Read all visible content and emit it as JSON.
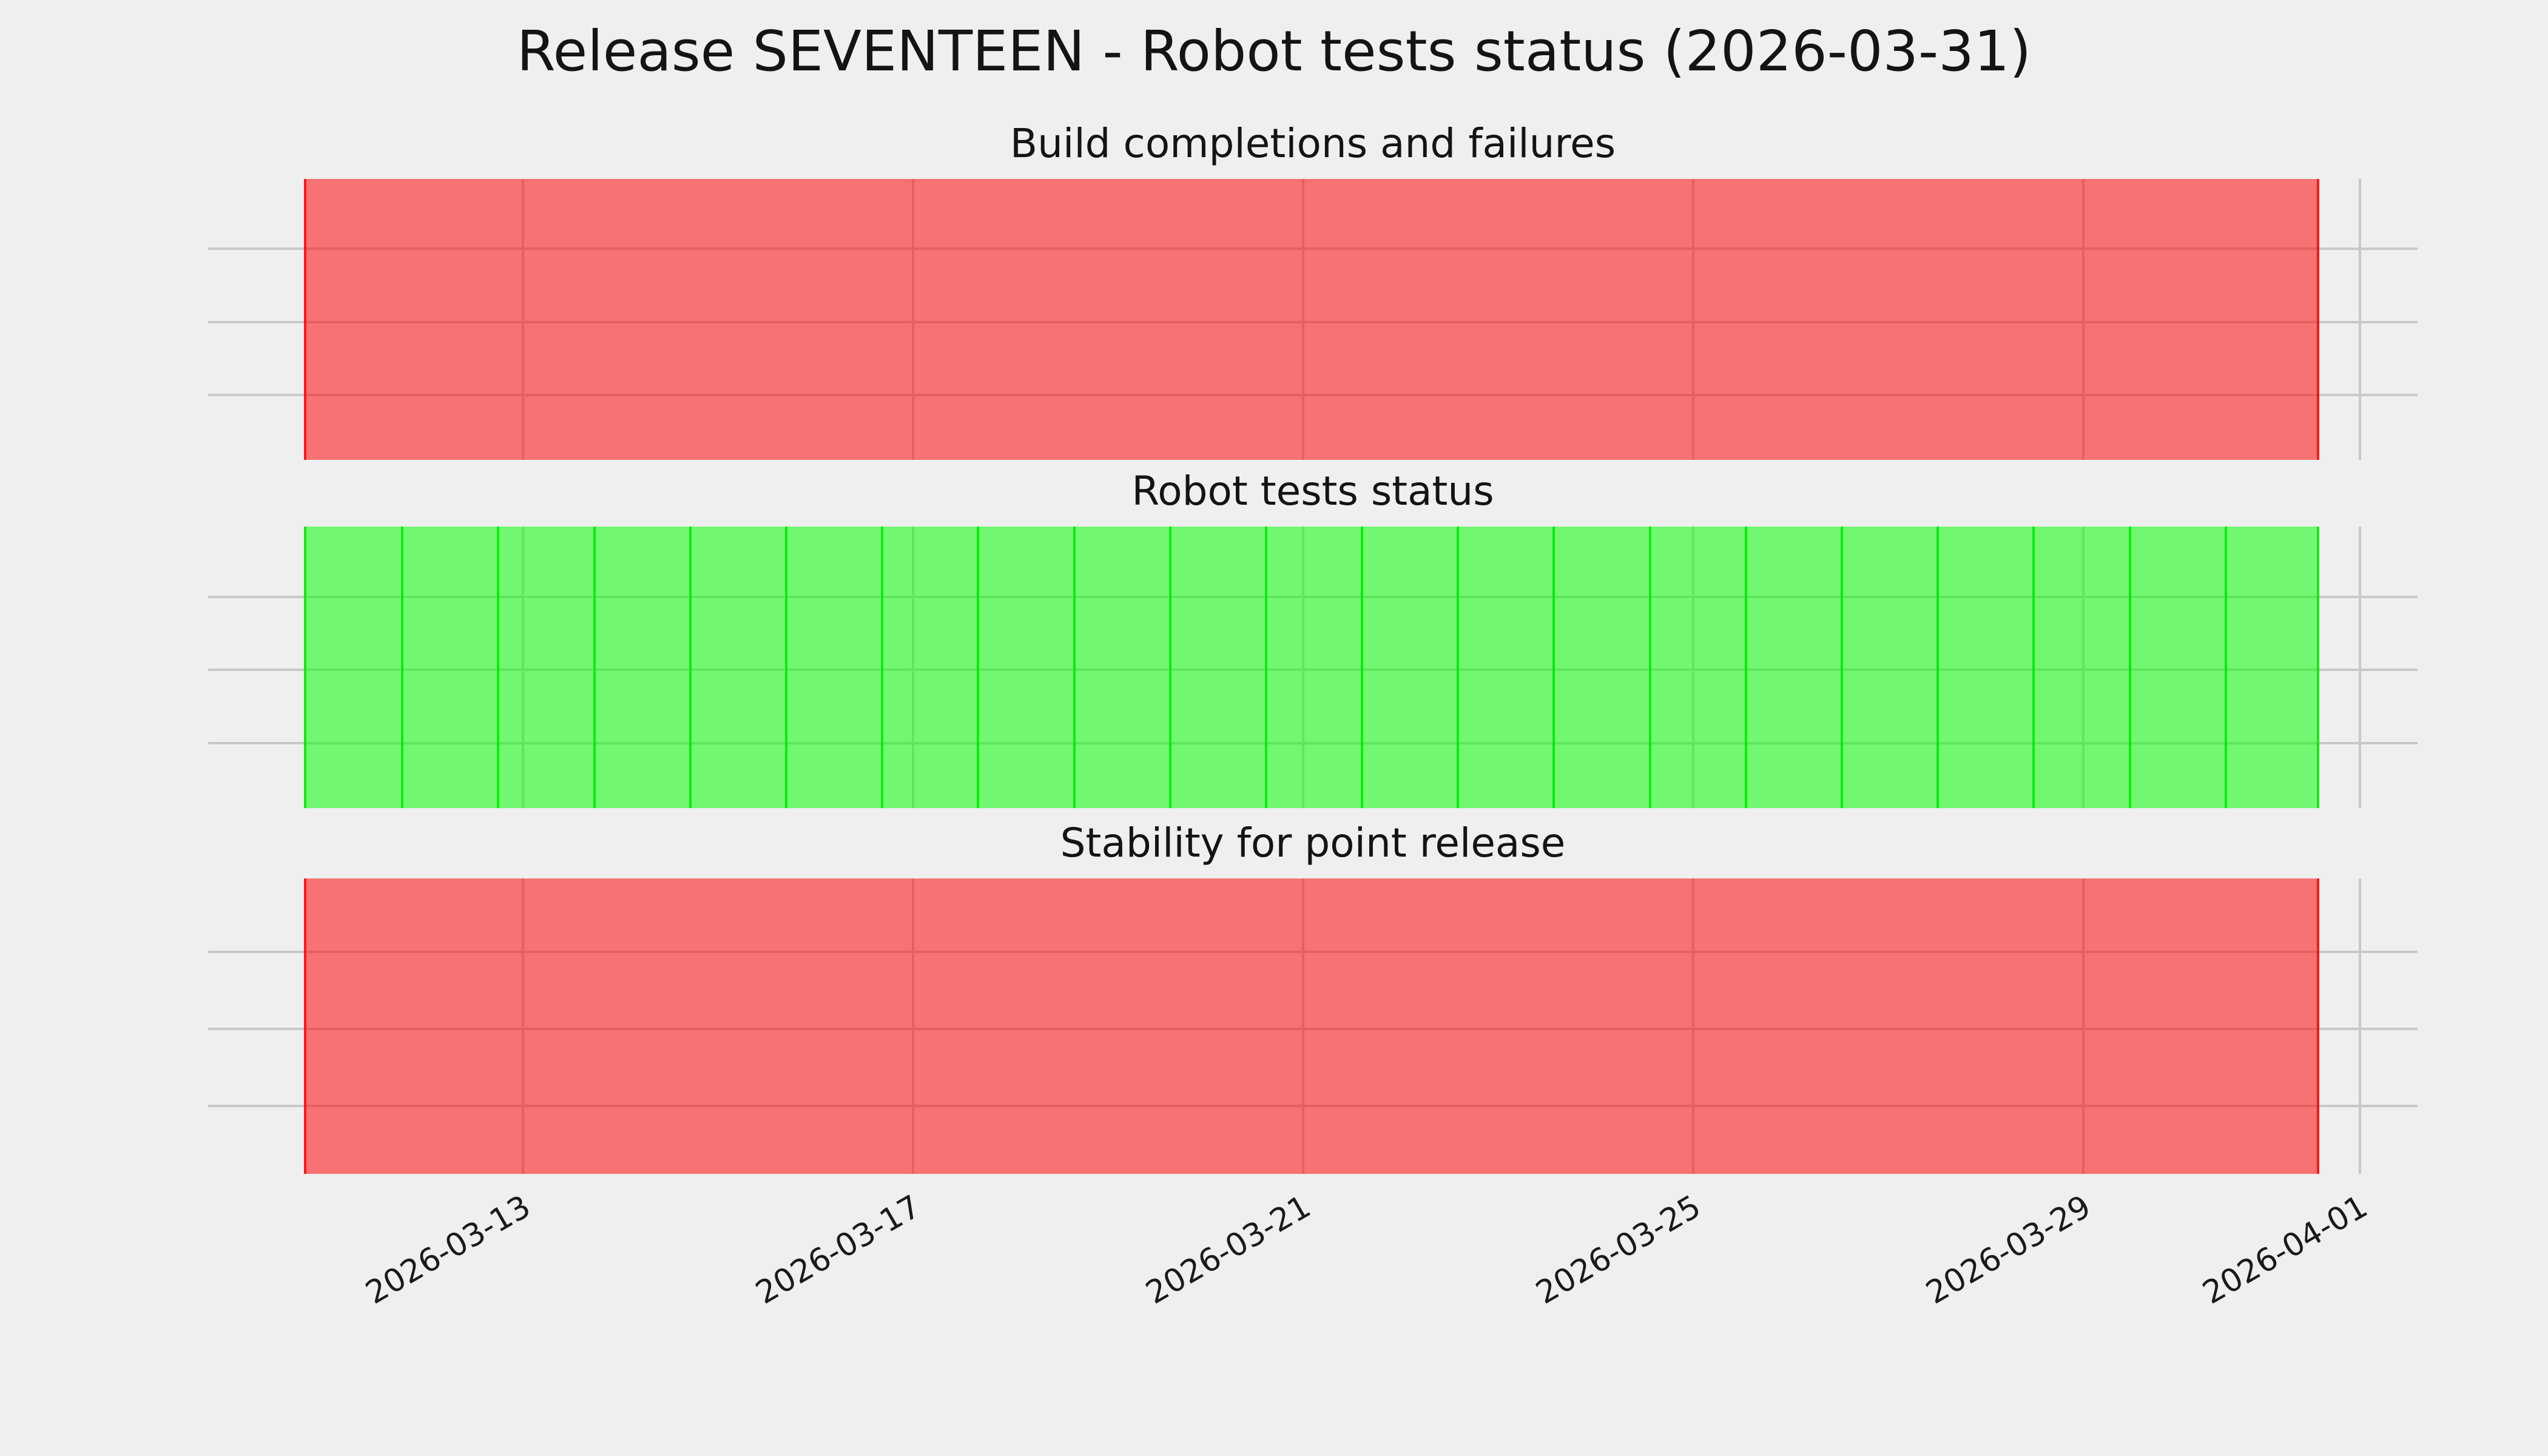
{
  "figure": {
    "title": "Release SEVENTEEN - Robot tests status (2026-03-31)",
    "background_color": "#efefef",
    "grid_color": "#c8c8c8",
    "text_color": "#141414"
  },
  "x_axis": {
    "tick_labels": [
      "2026-03-13",
      "2026-03-17",
      "2026-03-21",
      "2026-03-25",
      "2026-03-29",
      "2026-04-01"
    ],
    "label_rotation_deg": 30,
    "grid": "on"
  },
  "subplots": [
    {
      "title": "Build completions and failures",
      "status": "fail",
      "fill_color": "rgba(255,0,0,0.52)",
      "edge_color": "rgba(255,0,0,0.8)",
      "daily_segments": false
    },
    {
      "title": "Robot tests status",
      "status": "pass",
      "fill_color": "rgba(0,255,0,0.52)",
      "edge_color": "rgba(0,235,0,0.9)",
      "daily_segments": true
    },
    {
      "title": "Stability for point release",
      "status": "fail",
      "fill_color": "rgba(255,0,0,0.52)",
      "edge_color": "rgba(255,0,0,0.8)",
      "daily_segments": false
    }
  ],
  "chart_data": [
    {
      "type": "bar",
      "variant": "status_timeline_span",
      "title": "Build completions and failures",
      "span": {
        "start_approx": "2026-03-11",
        "end": "2026-03-31",
        "days": 21
      },
      "status": "fail",
      "status_base_color": "#ff0000",
      "rendered_fill": "#f57373",
      "x_ticks": [
        "2026-03-13",
        "2026-03-17",
        "2026-03-21",
        "2026-03-25",
        "2026-03-29",
        "2026-04-01"
      ],
      "grid": true,
      "legend": false
    },
    {
      "type": "bar",
      "variant": "status_timeline_span",
      "title": "Robot tests status",
      "span": {
        "start_approx": "2026-03-11",
        "end": "2026-03-31",
        "days": 21
      },
      "daily_segments": 21,
      "status": "pass",
      "status_base_color": "#00ff00",
      "rendered_fill": "#73f773",
      "x_ticks": [
        "2026-03-13",
        "2026-03-17",
        "2026-03-21",
        "2026-03-25",
        "2026-03-29",
        "2026-04-01"
      ],
      "grid": true,
      "legend": false
    },
    {
      "type": "bar",
      "variant": "status_timeline_span",
      "title": "Stability for point release",
      "span": {
        "start_approx": "2026-03-11",
        "end": "2026-03-31",
        "days": 21
      },
      "status": "fail",
      "status_base_color": "#ff0000",
      "rendered_fill": "#f57373",
      "x_ticks": [
        "2026-03-13",
        "2026-03-17",
        "2026-03-21",
        "2026-03-25",
        "2026-03-29",
        "2026-04-01"
      ],
      "grid": true,
      "legend": false
    }
  ]
}
